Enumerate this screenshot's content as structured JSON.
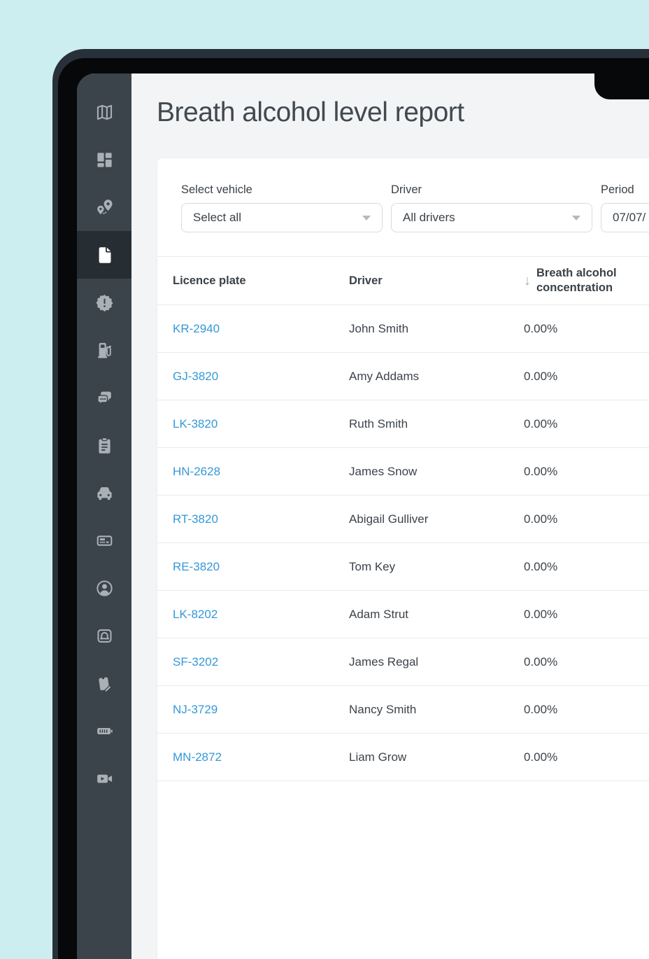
{
  "header": {
    "title": "Breath alcohol level report"
  },
  "colors": {
    "background": "#cdeef0",
    "bezel": "#283039",
    "sidebar_bg": "#3b434b",
    "sidebar_active_bg": "#262d33",
    "link_blue": "#3598d8",
    "text_dark": "#3a4147",
    "screen_bg": "#f3f4f5"
  },
  "sidebar": {
    "items": [
      {
        "name": "map",
        "icon": "map-icon",
        "active": false
      },
      {
        "name": "dashboard",
        "icon": "dashboard-icon",
        "active": false
      },
      {
        "name": "routes",
        "icon": "route-pins-icon",
        "active": false
      },
      {
        "name": "reports",
        "icon": "document-icon",
        "active": true
      },
      {
        "name": "alerts",
        "icon": "alert-badge-icon",
        "active": false
      },
      {
        "name": "fuel",
        "icon": "fuel-pump-icon",
        "active": false
      },
      {
        "name": "messages",
        "icon": "chat-bubbles-icon",
        "active": false
      },
      {
        "name": "tasks",
        "icon": "clipboard-icon",
        "active": false
      },
      {
        "name": "vehicles",
        "icon": "car-icon",
        "active": false
      },
      {
        "name": "tachograph",
        "icon": "tachograph-card-icon",
        "active": false
      },
      {
        "name": "drivers",
        "icon": "user-icon",
        "active": false
      },
      {
        "name": "garage",
        "icon": "vehicle-frame-icon",
        "active": false
      },
      {
        "name": "forms",
        "icon": "clipboard-edit-icon",
        "active": false
      },
      {
        "name": "battery",
        "icon": "battery-icon",
        "active": false
      },
      {
        "name": "camera",
        "icon": "video-camera-icon",
        "active": false
      }
    ]
  },
  "filters": {
    "vehicle": {
      "label": "Select vehicle",
      "value": "Select all"
    },
    "driver": {
      "label": "Driver",
      "value": "All drivers"
    },
    "period": {
      "label": "Period",
      "value": "07/07/"
    }
  },
  "table": {
    "columns": [
      "Licence plate",
      "Driver",
      "Breath alcohol concentration"
    ],
    "sort": {
      "column": "Breath alcohol concentration",
      "direction": "descending",
      "icon": "↓"
    },
    "rows": [
      {
        "plate": "KR-2940",
        "driver": "John Smith",
        "value": "0.00%"
      },
      {
        "plate": "GJ-3820",
        "driver": "Amy Addams",
        "value": "0.00%"
      },
      {
        "plate": "LK-3820",
        "driver": "Ruth Smith",
        "value": "0.00%"
      },
      {
        "plate": "HN-2628",
        "driver": "James Snow",
        "value": "0.00%"
      },
      {
        "plate": "RT-3820",
        "driver": "Abigail Gulliver",
        "value": "0.00%"
      },
      {
        "plate": "RE-3820",
        "driver": "Tom Key",
        "value": "0.00%"
      },
      {
        "plate": "LK-8202",
        "driver": "Adam Strut",
        "value": "0.00%"
      },
      {
        "plate": "SF-3202",
        "driver": "James Regal",
        "value": "0.00%"
      },
      {
        "plate": "NJ-3729",
        "driver": "Nancy Smith",
        "value": "0.00%"
      },
      {
        "plate": "MN-2872",
        "driver": "Liam Grow",
        "value": "0.00%"
      }
    ]
  }
}
